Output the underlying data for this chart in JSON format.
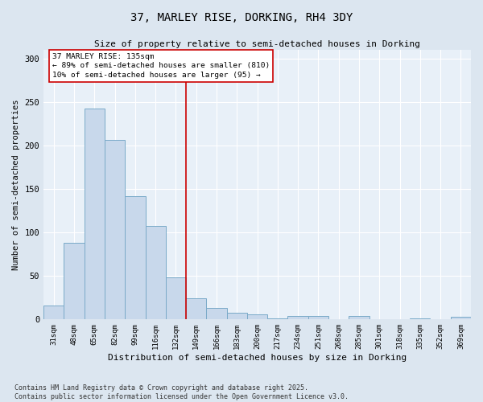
{
  "title_line1": "37, MARLEY RISE, DORKING, RH4 3DY",
  "title_line2": "Size of property relative to semi-detached houses in Dorking",
  "xlabel": "Distribution of semi-detached houses by size in Dorking",
  "ylabel": "Number of semi-detached properties",
  "categories": [
    "31sqm",
    "48sqm",
    "65sqm",
    "82sqm",
    "99sqm",
    "116sqm",
    "132sqm",
    "149sqm",
    "166sqm",
    "183sqm",
    "200sqm",
    "217sqm",
    "234sqm",
    "251sqm",
    "268sqm",
    "285sqm",
    "301sqm",
    "318sqm",
    "335sqm",
    "352sqm",
    "369sqm"
  ],
  "values": [
    16,
    88,
    243,
    207,
    142,
    108,
    48,
    24,
    13,
    8,
    6,
    1,
    4,
    4,
    0,
    4,
    0,
    0,
    1,
    0,
    3
  ],
  "bar_color": "#c8d8eb",
  "bar_edge_color": "#7aaac8",
  "vline_x": 6.5,
  "vline_color": "#cc0000",
  "annotation_title": "37 MARLEY RISE: 135sqm",
  "annotation_line1": "← 89% of semi-detached houses are smaller (810)",
  "annotation_line2": "10% of semi-detached houses are larger (95) →",
  "annotation_box_color": "#ffffff",
  "annotation_box_edge": "#cc0000",
  "ylim": [
    0,
    310
  ],
  "yticks": [
    0,
    50,
    100,
    150,
    200,
    250,
    300
  ],
  "footer": "Contains HM Land Registry data © Crown copyright and database right 2025.\nContains public sector information licensed under the Open Government Licence v3.0.",
  "background_color": "#dce6f0",
  "plot_background_color": "#e8f0f8"
}
